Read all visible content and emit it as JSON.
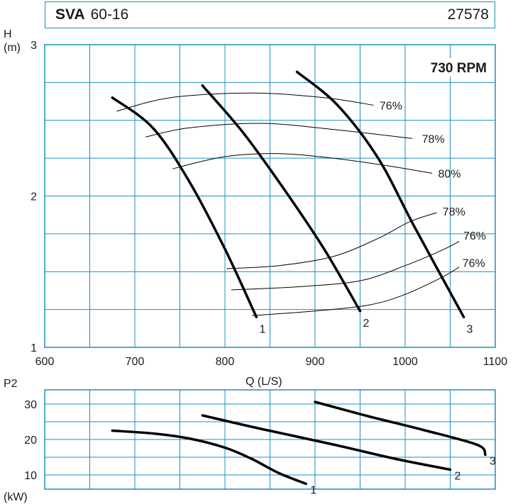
{
  "header": {
    "model_bold": "SVA",
    "model_size": "60-16",
    "code": "27578"
  },
  "colors": {
    "grid": "#1a8fc4",
    "curve": "#000000",
    "text": "#1a1a1a"
  },
  "chart_data": [
    {
      "type": "line",
      "name": "head-chart",
      "ylabel_line1": "H",
      "ylabel_line2": "(m)",
      "xlabel": "Q  (L/S)",
      "annotation": "730 RPM",
      "xlim": [
        600,
        1100
      ],
      "ylim": [
        1,
        3
      ],
      "x_ticks": [
        "600",
        "700",
        "800",
        "900",
        "1000",
        "1100"
      ],
      "y_ticks": [
        "1",
        "2",
        "3"
      ],
      "grid": true,
      "series": [
        {
          "name": "1",
          "points": [
            [
              675,
              2.65
            ],
            [
              720,
              2.45
            ],
            [
              760,
              2.1
            ],
            [
              800,
              1.65
            ],
            [
              835,
              1.2
            ]
          ]
        },
        {
          "name": "2",
          "points": [
            [
              775,
              2.73
            ],
            [
              820,
              2.42
            ],
            [
              865,
              2.05
            ],
            [
              910,
              1.65
            ],
            [
              950,
              1.24
            ]
          ]
        },
        {
          "name": "3",
          "points": [
            [
              880,
              2.82
            ],
            [
              925,
              2.6
            ],
            [
              970,
              2.25
            ],
            [
              1010,
              1.8
            ],
            [
              1065,
              1.2
            ]
          ]
        }
      ],
      "efficiency_curves": [
        {
          "label": "76%",
          "points": [
            [
              680,
              2.56
            ],
            [
              740,
              2.65
            ],
            [
              830,
              2.68
            ],
            [
              910,
              2.65
            ],
            [
              965,
              2.6
            ]
          ],
          "label_at": [
            970,
            2.6
          ]
        },
        {
          "label": "78%",
          "points": [
            [
              712,
              2.39
            ],
            [
              760,
              2.45
            ],
            [
              840,
              2.48
            ],
            [
              920,
              2.44
            ],
            [
              1008,
              2.38
            ]
          ],
          "label_at": [
            1017,
            2.38
          ]
        },
        {
          "label": "80%",
          "points": [
            [
              742,
              2.18
            ],
            [
              800,
              2.26
            ],
            [
              860,
              2.28
            ],
            [
              920,
              2.25
            ],
            [
              980,
              2.2
            ],
            [
              1030,
              2.15
            ]
          ],
          "label_at": [
            1035,
            2.15
          ]
        },
        {
          "label": "78%",
          "points": [
            [
              802,
              1.52
            ],
            [
              860,
              1.54
            ],
            [
              920,
              1.6
            ],
            [
              970,
              1.72
            ],
            [
              1005,
              1.83
            ],
            [
              1035,
              1.89
            ]
          ],
          "label_at": [
            1040,
            1.9
          ]
        },
        {
          "label": "76%",
          "points": [
            [
              807,
              1.38
            ],
            [
              880,
              1.4
            ],
            [
              950,
              1.44
            ],
            [
              1000,
              1.54
            ],
            [
              1040,
              1.64
            ],
            [
              1060,
              1.7
            ]
          ],
          "label_at": [
            1063,
            1.74
          ]
        },
        {
          "label": "76%",
          "points": [
            [
              830,
              1.21
            ],
            [
              900,
              1.24
            ],
            [
              960,
              1.28
            ],
            [
              1000,
              1.35
            ],
            [
              1040,
              1.46
            ],
            [
              1060,
              1.53
            ]
          ],
          "label_at": [
            1062,
            1.56
          ]
        }
      ]
    },
    {
      "type": "line",
      "name": "power-chart",
      "ylabel_top": "P2",
      "ylabel_bottom": "(kW)",
      "xlim": [
        600,
        1100
      ],
      "ylim": [
        6,
        34
      ],
      "y_ticks": [
        "10",
        "20",
        "30"
      ],
      "grid": true,
      "series": [
        {
          "name": "1",
          "points": [
            [
              675,
              22.5
            ],
            [
              720,
              21.7
            ],
            [
              760,
              20.3
            ],
            [
              800,
              17.7
            ],
            [
              830,
              14.5
            ],
            [
              860,
              10.5
            ],
            [
              890,
              7.5
            ]
          ]
        },
        {
          "name": "2",
          "points": [
            [
              775,
              26.8
            ],
            [
              840,
              23.0
            ],
            [
              920,
              18.6
            ],
            [
              990,
              14.5
            ],
            [
              1050,
              11.5
            ]
          ]
        },
        {
          "name": "3",
          "points": [
            [
              900,
              30.6
            ],
            [
              960,
              26.5
            ],
            [
              1020,
              22.7
            ],
            [
              1080,
              18.5
            ],
            [
              1130,
              15.7
            ]
          ]
        }
      ]
    }
  ]
}
